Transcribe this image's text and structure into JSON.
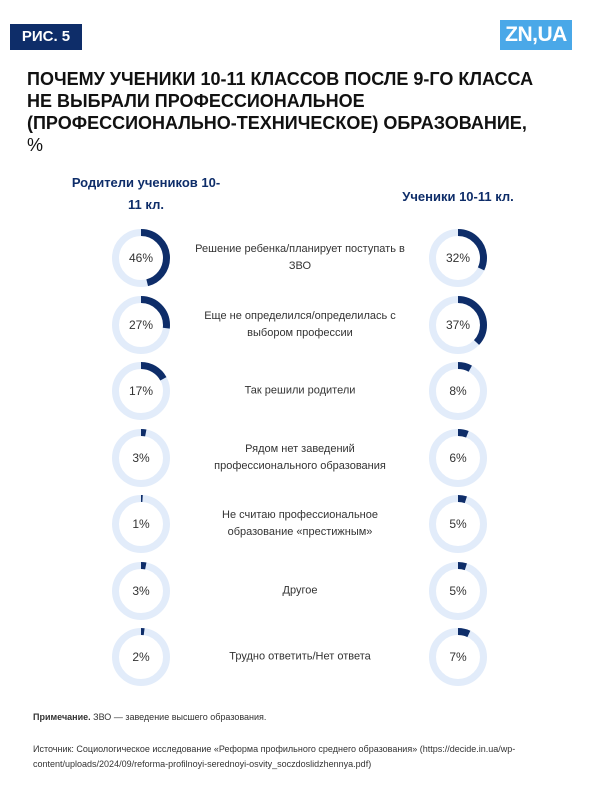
{
  "figure_label": "РИС. 5",
  "logo": "ZN,UA",
  "chart_data": {
    "type": "donut",
    "title": "ПОЧЕМУ УЧЕНИКИ 10-11 КЛАССОВ ПОСЛЕ 9-ГО КЛАССА НЕ ВЫБРАЛИ ПРОФЕССИОНАЛЬНОЕ (ПРОФЕССИОНАЛЬНО-ТЕХНИЧЕСКОЕ) ОБРАЗОВАНИЕ,",
    "title_unit": "%",
    "categories": [
      "Решение ребенка/планирует поступать в ЗВО",
      "Еще не определился/определилась с выбором профессии",
      "Так решили родители",
      "Рядом нет заведений профессионального образования",
      "Не считаю профессиональное образование «престижным»",
      "Другое",
      "Трудно ответить/Нет ответа"
    ],
    "track_color": "#e2ecfa",
    "series": [
      {
        "name": "Родители учеников 10-11 кл.",
        "color": "#0e2d69",
        "values": [
          46,
          27,
          17,
          3,
          1,
          3,
          2
        ],
        "value_labels": [
          "46%",
          "27%",
          "17%",
          "3%",
          "1%",
          "3%",
          "2%"
        ]
      },
      {
        "name": "Ученики 10-11 кл.",
        "color": "#0e2d69",
        "values": [
          32,
          37,
          8,
          6,
          5,
          5,
          7
        ],
        "value_labels": [
          "32%",
          "37%",
          "8%",
          "6%",
          "5%",
          "5%",
          "7%"
        ]
      }
    ]
  },
  "note": {
    "label": "Примечание.",
    "text": "ЗВО — заведение высшего образования."
  },
  "source": "Источник: Социологическое исследование «Реформа профильного среднего образования» (https://decide.in.ua/wp-content/uploads/2024/09/reforma-profilnoyi-serednoyi-osvity_soczdoslidzhennya.pdf)"
}
